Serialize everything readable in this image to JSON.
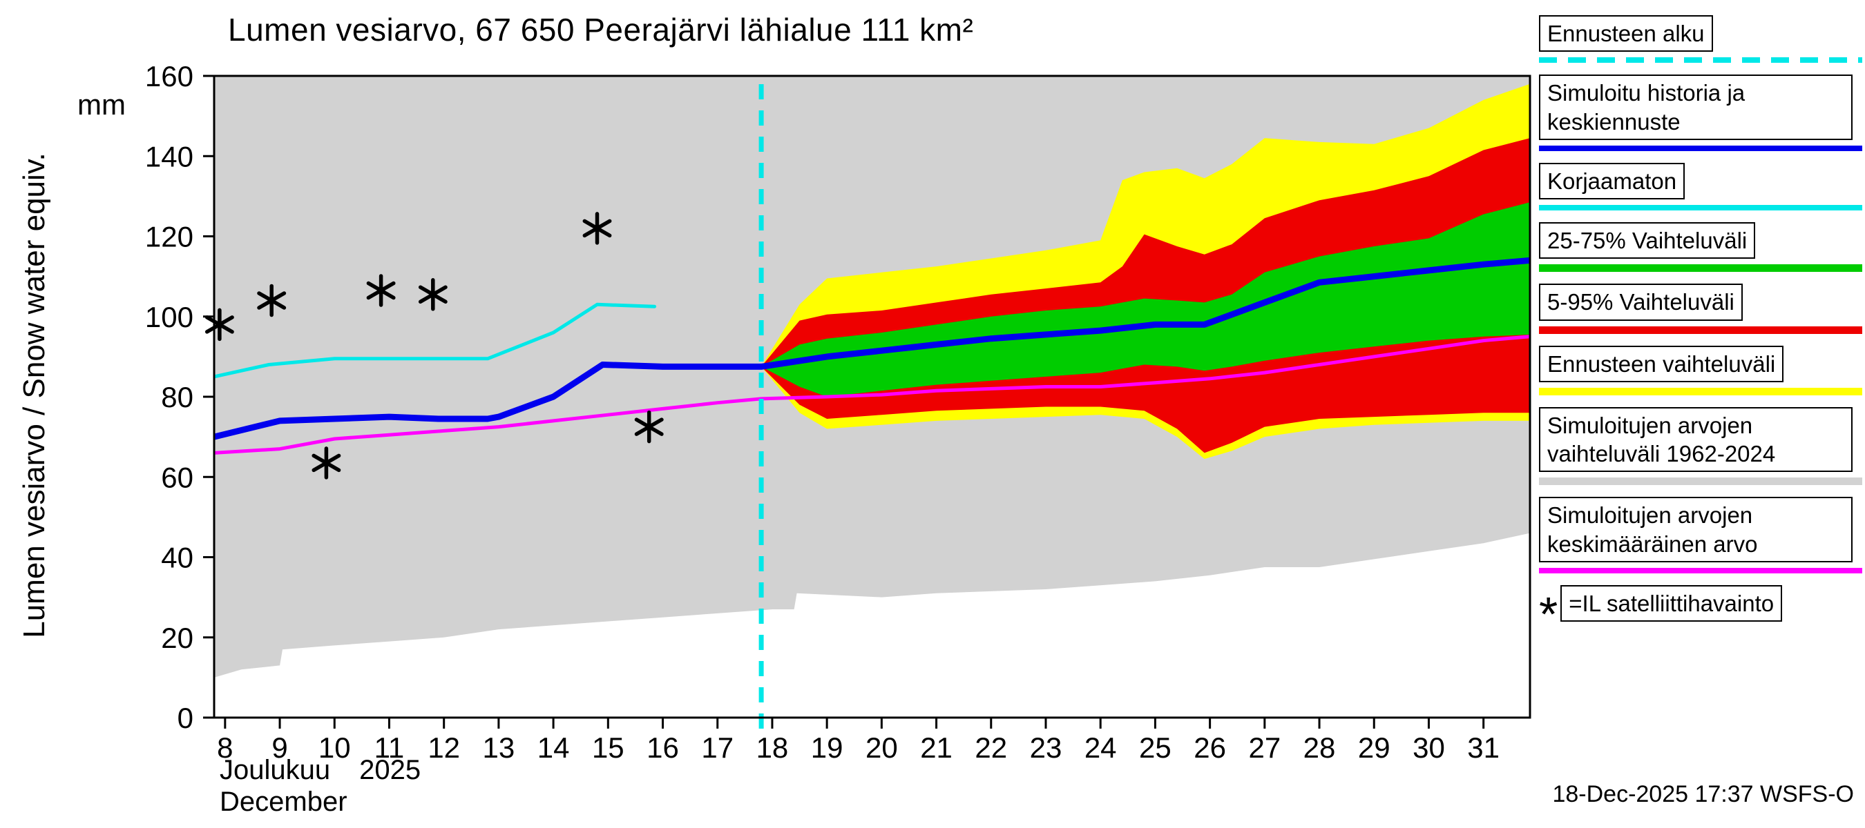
{
  "title": "Lumen vesiarvo, 67 650 Peerajärvi lähialue 111 km²",
  "axes": {
    "y_label_rotated": "Lumen vesiarvo / Snow water equiv.",
    "y_unit": "mm",
    "x_month_fi": "Joulukuu",
    "x_year": "2025",
    "x_month_en": "December"
  },
  "footer": {
    "timestamp": "18-Dec-2025 17:37 WSFS-O"
  },
  "legend": {
    "items": [
      {
        "label": "Ennusteen alku",
        "color": "#00e8e8",
        "style": "dashed-line"
      },
      {
        "label": "Simuloitu historia ja keskiennuste",
        "color": "#0000ee",
        "style": "line"
      },
      {
        "label": "Korjaamaton",
        "color": "#00e8e8",
        "style": "line"
      },
      {
        "label": "25-75% Vaihteluväli",
        "color": "#00cc00",
        "style": "band"
      },
      {
        "label": "5-95% Vaihteluväli",
        "color": "#ee0000",
        "style": "band"
      },
      {
        "label": "Ennusteen vaihteluväli",
        "color": "#ffff00",
        "style": "band"
      },
      {
        "label": "Simuloitujen arvojen vaihteluväli 1962-2024",
        "color": "#d2d2d2",
        "style": "band"
      },
      {
        "label": "Simuloitujen arvojen keskimääräinen arvo",
        "color": "#ff00ff",
        "style": "line"
      },
      {
        "label": "=IL satelliittihavainto",
        "symbol": "*",
        "style": "marker"
      }
    ]
  },
  "chart_data": {
    "type": "line",
    "title": "Lumen vesiarvo, 67 650 Peerajärvi lähialue 111 km²",
    "xlabel": "Joulukuu 2025 / December",
    "ylabel": "Lumen vesiarvo / Snow water equiv. (mm)",
    "xlim": [
      7.8,
      31.85
    ],
    "ylim": [
      0,
      160
    ],
    "x_ticks": [
      8,
      9,
      10,
      11,
      12,
      13,
      14,
      15,
      16,
      17,
      18,
      19,
      20,
      21,
      22,
      23,
      24,
      25,
      26,
      27,
      28,
      29,
      30,
      31
    ],
    "y_ticks": [
      0,
      20,
      40,
      60,
      80,
      100,
      120,
      140,
      160
    ],
    "grid": false,
    "legend_position": "right",
    "forecast_start_x": 17.8,
    "forecast_line_color": "#00e8e8",
    "bands": [
      {
        "name": "simulated-range-1962-2024",
        "color": "#d2d2d2",
        "x": [
          7.8,
          8.3,
          9,
          9.05,
          10,
          11,
          12,
          13,
          14,
          15,
          16,
          17,
          18,
          18.4,
          18.45,
          20,
          21,
          22,
          23,
          24,
          25,
          26,
          27,
          28,
          29,
          30,
          31,
          31.85
        ],
        "low": [
          10,
          12,
          13,
          17,
          18,
          19,
          20,
          22,
          23,
          24,
          25,
          26,
          27,
          27,
          31,
          30,
          31,
          31.5,
          32,
          33,
          34,
          35.5,
          37.5,
          37.5,
          39.5,
          41.5,
          43.5,
          46
        ],
        "high_const": 160
      },
      {
        "name": "forecast-range-yellow",
        "color": "#ffff00",
        "x": [
          17.8,
          18.5,
          19,
          20,
          21,
          22,
          23,
          24,
          24.4,
          24.8,
          25.4,
          25.9,
          26.4,
          27,
          28,
          29,
          30,
          31,
          31.85
        ],
        "high": [
          87.5,
          103,
          109.5,
          111,
          112.5,
          114.5,
          116.5,
          119,
          134,
          136,
          137,
          134.5,
          138,
          144.5,
          143.5,
          143,
          147,
          154,
          158
        ],
        "low": [
          87.5,
          76,
          72,
          73,
          74,
          74.5,
          75,
          75.5,
          75,
          74.5,
          70,
          64.5,
          66.5,
          70,
          72,
          73,
          73.5,
          74,
          74
        ]
      },
      {
        "name": "range-5-95",
        "color": "#ee0000",
        "x": [
          17.8,
          18.5,
          19,
          20,
          21,
          22,
          23,
          24,
          24.4,
          24.8,
          25.4,
          25.9,
          26.4,
          27,
          28,
          29,
          30,
          31,
          31.85
        ],
        "high": [
          87.5,
          99,
          100.5,
          101.5,
          103.5,
          105.5,
          107,
          108.5,
          112.5,
          120.5,
          117.5,
          115.5,
          118,
          124.5,
          129,
          131.5,
          135,
          141.5,
          144.5
        ],
        "low": [
          87.5,
          78,
          74.5,
          75.5,
          76.5,
          77,
          77.5,
          77.5,
          77,
          76.5,
          72,
          66,
          68.5,
          72.5,
          74.5,
          75,
          75.5,
          76,
          76
        ]
      },
      {
        "name": "range-25-75",
        "color": "#00cc00",
        "x": [
          17.8,
          18.5,
          19,
          20,
          21,
          22,
          23,
          24,
          24.4,
          24.8,
          25.4,
          25.9,
          26.4,
          27,
          28,
          29,
          30,
          31,
          31.85
        ],
        "high": [
          87.5,
          93,
          94.5,
          96,
          98,
          100,
          101.5,
          102.5,
          103.5,
          104.5,
          104,
          103.5,
          105.5,
          111,
          115,
          117.5,
          119.5,
          125.5,
          128.5
        ],
        "low": [
          87.5,
          82.5,
          80,
          81.5,
          83,
          84,
          85,
          86,
          87,
          88,
          87.5,
          86.5,
          87.5,
          89,
          91,
          92.5,
          94,
          95,
          95.5
        ]
      }
    ],
    "series": [
      {
        "name": "simulated-mean-value",
        "label": "Simuloitujen arvojen keskimääräinen arvo",
        "color": "#ff00ff",
        "width": 5,
        "x": [
          7.8,
          9,
          10,
          11,
          12,
          13,
          14,
          15,
          16,
          17,
          17.8,
          19,
          20,
          21,
          22,
          23,
          24,
          25,
          26,
          27,
          28,
          29,
          30,
          31,
          31.85
        ],
        "y": [
          66,
          67,
          69.5,
          70.5,
          71.5,
          72.5,
          74,
          75.5,
          77,
          78.5,
          79.5,
          80,
          80.5,
          81.5,
          82,
          82.5,
          82.5,
          83.5,
          84.5,
          86,
          88,
          90,
          92,
          94,
          95
        ]
      },
      {
        "name": "uncorrected",
        "label": "Korjaamaton",
        "color": "#00e8e8",
        "width": 5,
        "x": [
          7.8,
          8.8,
          10,
          11,
          12,
          12.8,
          14,
          14.8,
          15.85
        ],
        "y": [
          85,
          88,
          89.5,
          89.5,
          89.5,
          89.5,
          96,
          103,
          102.5
        ]
      },
      {
        "name": "simulated-history-and-mean-forecast",
        "label": "Simuloitu historia ja keskiennuste",
        "color": "#0000ee",
        "width": 9,
        "x": [
          7.8,
          9,
          10,
          11,
          11.9,
          12.8,
          13,
          14,
          14.9,
          16,
          17,
          17.8,
          19,
          20,
          21,
          22,
          23,
          24,
          25,
          25.9,
          27,
          28,
          29,
          30,
          31,
          31.85
        ],
        "y": [
          70,
          74,
          74.5,
          75,
          74.5,
          74.5,
          75,
          80,
          88,
          87.5,
          87.5,
          87.5,
          90,
          91.5,
          93,
          94.5,
          95.5,
          96.5,
          98,
          98,
          103.5,
          108.5,
          110,
          111.5,
          113,
          114
        ]
      }
    ],
    "observations": {
      "name": "IL-satellite-observations",
      "marker": "*",
      "x": [
        7.9,
        8.85,
        9.85,
        10.85,
        11.8,
        14.8,
        15.75
      ],
      "y": [
        98,
        104,
        63.5,
        106.5,
        105.5,
        122,
        72.5
      ]
    }
  }
}
